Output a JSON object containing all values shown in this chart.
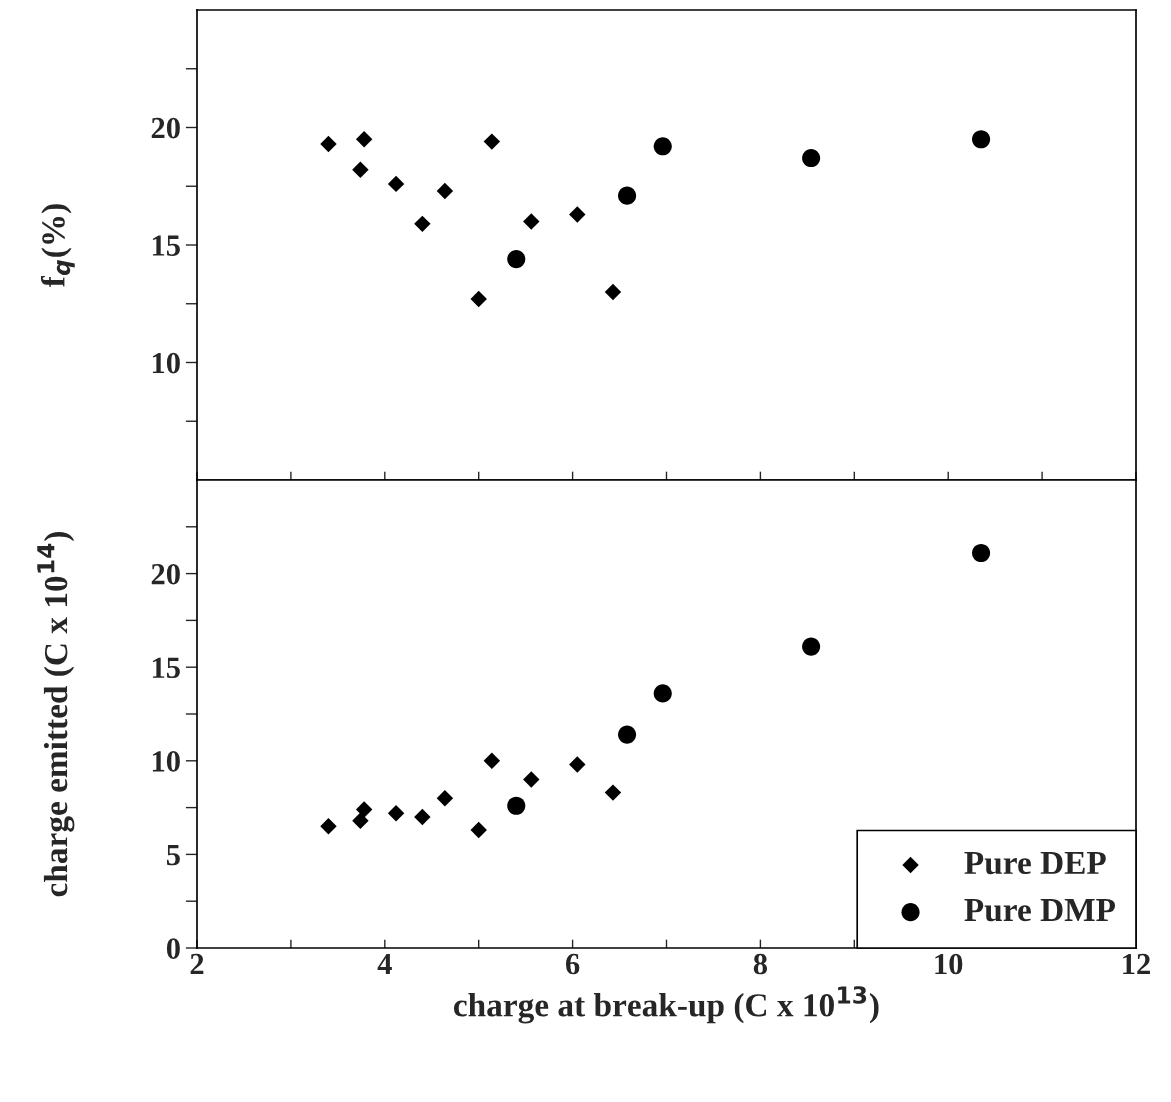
{
  "chart_data": [
    {
      "type": "scatter",
      "ylabel": "f$_{q}$(%)",
      "xlim": [
        2,
        12
      ],
      "xticks": [
        {
          "value": 2,
          "label": null
        },
        {
          "value": 3,
          "label": null
        },
        {
          "value": 4,
          "label": null
        },
        {
          "value": 5,
          "label": null
        },
        {
          "value": 6,
          "label": null
        },
        {
          "value": 7,
          "label": null
        },
        {
          "value": 8,
          "label": null
        },
        {
          "value": 9,
          "label": null
        },
        {
          "value": 10,
          "label": null
        },
        {
          "value": 11,
          "label": null
        },
        {
          "value": 12,
          "label": null
        }
      ],
      "ylim": [
        5,
        25
      ],
      "yticks": [
        {
          "value": 7.5,
          "label": null
        },
        10,
        {
          "value": 12.5,
          "label": null
        },
        15,
        {
          "value": 17.5,
          "label": null
        },
        20,
        {
          "value": 22.5,
          "label": null
        }
      ],
      "tick_labels": "y",
      "grid": false,
      "series": [
        {
          "color": "#000000",
          "marker": "diamond",
          "x": [
            3.4,
            3.74,
            3.78,
            4.12,
            4.4,
            4.64,
            5.0,
            5.14,
            5.56,
            6.05,
            6.43
          ],
          "values": [
            19.3,
            18.2,
            19.5,
            17.6,
            15.9,
            17.3,
            12.7,
            19.4,
            16.0,
            16.3,
            13.0
          ]
        },
        {
          "color": "#000000",
          "marker": "circle",
          "x": [
            5.4,
            6.58,
            6.96,
            8.54,
            10.35
          ],
          "values": [
            14.4,
            17.1,
            19.2,
            18.7,
            19.5
          ]
        }
      ]
    },
    {
      "type": "scatter",
      "ylabel": "charge emitted (C x 10$^{14}$)",
      "xlabel": "charge at break-up (C x 10$^{13}$)",
      "xlim": [
        2,
        12
      ],
      "xticks": [
        2,
        {
          "value": 3,
          "label": null
        },
        4,
        {
          "value": 5,
          "label": null
        },
        6,
        {
          "value": 7,
          "label": null
        },
        8,
        {
          "value": 9,
          "label": null
        },
        10,
        {
          "value": 11,
          "label": null
        },
        12
      ],
      "ylim": [
        0,
        25
      ],
      "yticks": [
        0,
        {
          "value": 2.5,
          "label": null
        },
        5,
        {
          "value": 7.5,
          "label": null
        },
        10,
        {
          "value": 12.5,
          "label": null
        },
        15,
        {
          "value": 17.5,
          "label": null
        },
        20,
        {
          "value": 22.5,
          "label": null
        }
      ],
      "grid": false,
      "legend": "bottom right",
      "series": [
        {
          "name": "Pure DEP",
          "color": "#000000",
          "marker": "diamond",
          "x": [
            3.4,
            3.74,
            3.78,
            4.12,
            4.4,
            4.64,
            5.0,
            5.14,
            5.56,
            6.05,
            6.43
          ],
          "values": [
            6.5,
            6.8,
            7.4,
            7.2,
            7.0,
            8.0,
            6.3,
            10.0,
            9.0,
            9.8,
            8.3
          ]
        },
        {
          "name": "Pure DMP",
          "color": "#000000",
          "marker": "circle",
          "x": [
            5.4,
            6.58,
            6.96,
            8.54,
            10.35
          ],
          "values": [
            7.6,
            11.4,
            13.6,
            16.1,
            21.1
          ]
        }
      ]
    }
  ]
}
